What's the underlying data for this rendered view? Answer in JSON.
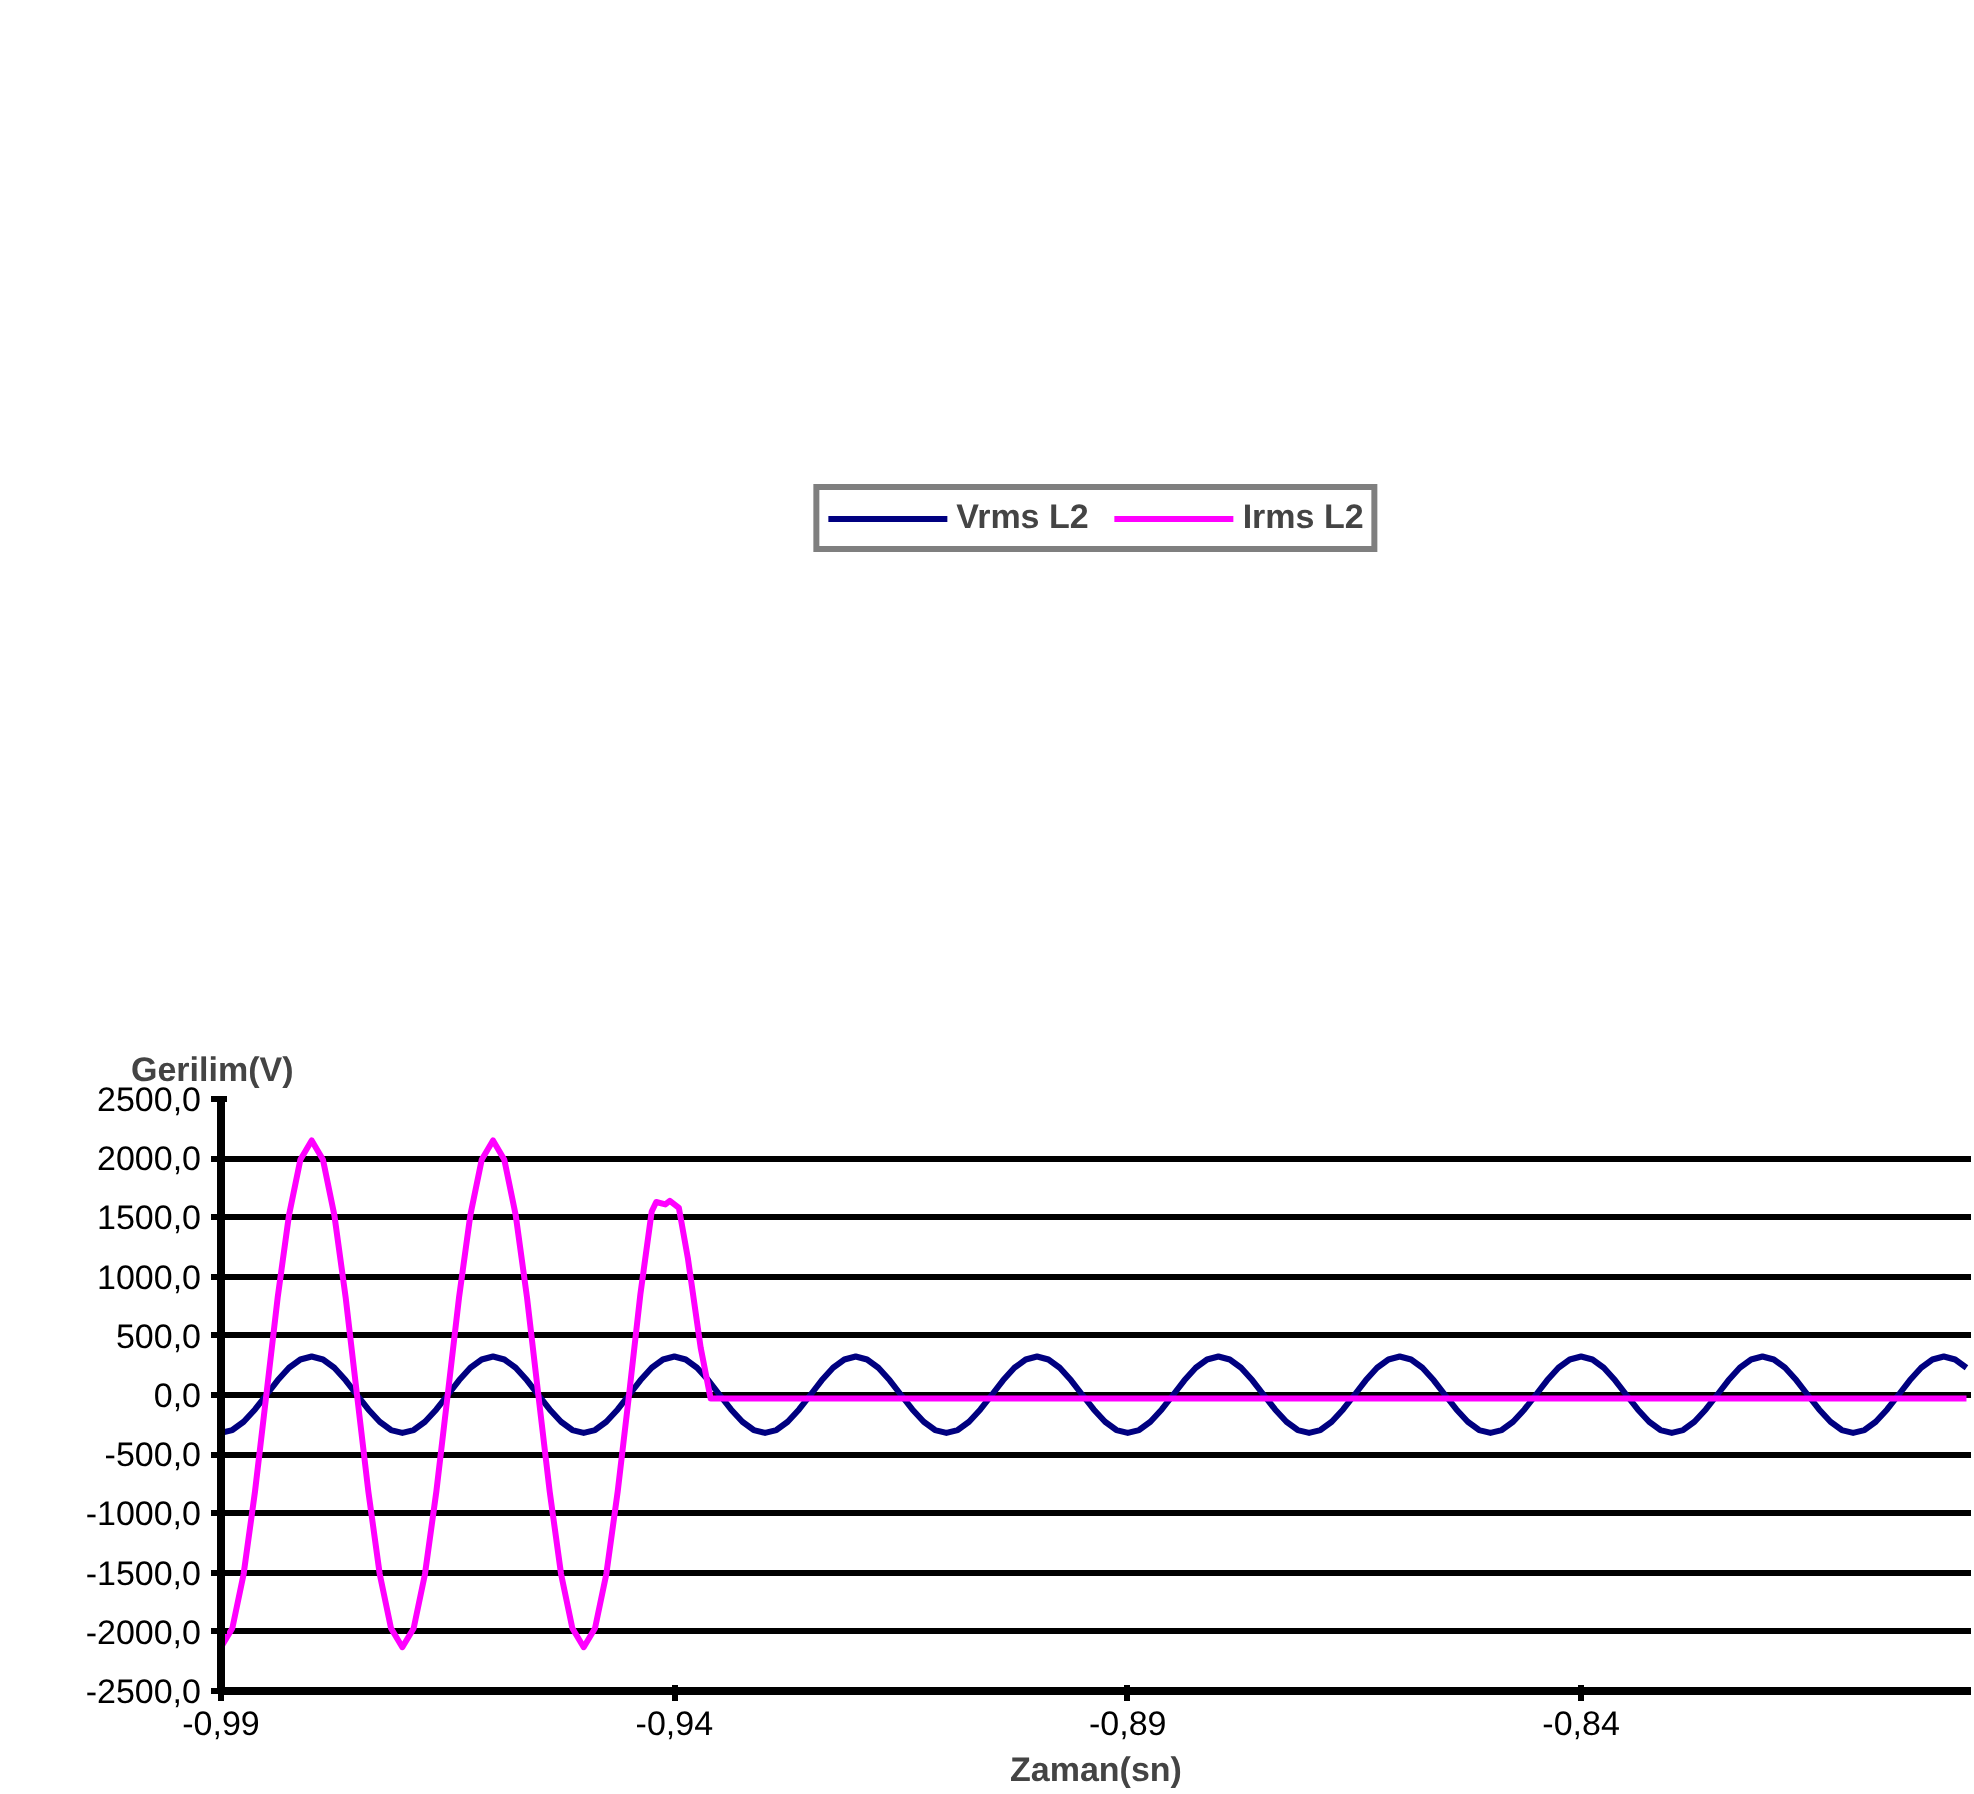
{
  "chart_data": {
    "type": "line",
    "xlabel": "Zaman(sn)",
    "ylabel": "Gerilim(V)",
    "xlim": [
      -0.99,
      -0.797
    ],
    "ylim": [
      -2500,
      2500
    ],
    "xticks": [
      {
        "value": -0.99,
        "label": "-0,99"
      },
      {
        "value": -0.94,
        "label": "-0,94"
      },
      {
        "value": -0.89,
        "label": "-0,89"
      },
      {
        "value": -0.84,
        "label": "-0,84"
      }
    ],
    "yticks": [
      {
        "value": -2500,
        "label": "-2500,0"
      },
      {
        "value": -2000,
        "label": "-2000,0"
      },
      {
        "value": -1500,
        "label": "-1500,0"
      },
      {
        "value": -1000,
        "label": "-1000,0"
      },
      {
        "value": -500,
        "label": "-500,0"
      },
      {
        "value": 0,
        "label": "0,0"
      },
      {
        "value": 500,
        "label": "500,0"
      },
      {
        "value": 1000,
        "label": "1000,0"
      },
      {
        "value": 1500,
        "label": "1500,0"
      },
      {
        "value": 2000,
        "label": "2000,0"
      },
      {
        "value": 2500,
        "label": "2500,0"
      }
    ],
    "grid": "y",
    "legend": "top",
    "x": [
      -0.99,
      -0.98875,
      -0.9875,
      -0.98625,
      -0.985,
      -0.98375,
      -0.9825,
      -0.98125,
      -0.98,
      -0.97875,
      -0.9775,
      -0.97625,
      -0.975,
      -0.97375,
      -0.9725,
      -0.97125,
      -0.97,
      -0.96875,
      -0.9675,
      -0.96625,
      -0.965,
      -0.96375,
      -0.9625,
      -0.96125,
      -0.96,
      -0.95875,
      -0.9575,
      -0.95625,
      -0.955,
      -0.95375,
      -0.9525,
      -0.95125,
      -0.95,
      -0.94875,
      -0.9475,
      -0.94625,
      -0.945,
      -0.94375,
      -0.9425,
      -0.94125,
      -0.94,
      -0.93875,
      -0.9375,
      -0.93625,
      -0.935,
      -0.93375,
      -0.9325,
      -0.93125,
      -0.93,
      -0.92875,
      -0.9275,
      -0.92625,
      -0.925,
      -0.92375,
      -0.9225,
      -0.92125,
      -0.92,
      -0.91875,
      -0.9175,
      -0.91625,
      -0.915,
      -0.91375,
      -0.9125,
      -0.91125,
      -0.91,
      -0.90875,
      -0.9075,
      -0.90625,
      -0.905,
      -0.90375,
      -0.9025,
      -0.90125,
      -0.9,
      -0.89875,
      -0.8975,
      -0.89625,
      -0.895,
      -0.89375,
      -0.8925,
      -0.89125,
      -0.89,
      -0.88875,
      -0.8875,
      -0.88625,
      -0.885,
      -0.88375,
      -0.8825,
      -0.88125,
      -0.88,
      -0.87875,
      -0.8775,
      -0.87625,
      -0.875,
      -0.87375,
      -0.8725,
      -0.87125,
      -0.87,
      -0.86875,
      -0.8675,
      -0.86625,
      -0.865,
      -0.86375,
      -0.8625,
      -0.86125,
      -0.86,
      -0.85875,
      -0.8575,
      -0.85625,
      -0.855,
      -0.85375,
      -0.8525,
      -0.85125,
      -0.85,
      -0.84875,
      -0.8475,
      -0.84625,
      -0.845,
      -0.84375,
      -0.8425,
      -0.84125,
      -0.84,
      -0.83875,
      -0.8375,
      -0.83625,
      -0.835,
      -0.83375,
      -0.8325,
      -0.83125,
      -0.83,
      -0.82875,
      -0.8275,
      -0.82625,
      -0.825,
      -0.82375,
      -0.8225,
      -0.82125,
      -0.82,
      -0.81875,
      -0.8175,
      -0.81625,
      -0.815,
      -0.81375,
      -0.8125,
      -0.81125,
      -0.81,
      -0.80875,
      -0.8075,
      -0.80625,
      -0.805,
      -0.80375,
      -0.8025,
      -0.80125,
      -0.8,
      -0.79875,
      -0.7975
    ],
    "series": [
      {
        "name": "Vrms L2",
        "color": "#000080",
        "values": [
          -320,
          -296,
          -226,
          -122,
          0,
          124,
          230,
          300,
          325,
          300,
          230,
          124,
          0,
          -122,
          -226,
          -296,
          -320,
          -296,
          -226,
          -122,
          0,
          124,
          230,
          300,
          325,
          300,
          230,
          124,
          0,
          -122,
          -226,
          -296,
          -320,
          -296,
          -226,
          -122,
          0,
          124,
          230,
          300,
          325,
          300,
          230,
          124,
          0,
          -122,
          -226,
          -296,
          -320,
          -296,
          -226,
          -122,
          0,
          124,
          230,
          300,
          325,
          300,
          230,
          124,
          0,
          -122,
          -226,
          -296,
          -320,
          -296,
          -226,
          -122,
          0,
          124,
          230,
          300,
          325,
          300,
          230,
          124,
          0,
          -122,
          -226,
          -296,
          -320,
          -296,
          -226,
          -122,
          0,
          124,
          230,
          300,
          325,
          300,
          230,
          124,
          0,
          -122,
          -226,
          -296,
          -320,
          -296,
          -226,
          -122,
          0,
          124,
          230,
          300,
          325,
          300,
          230,
          124,
          0,
          -122,
          -226,
          -296,
          -320,
          -296,
          -226,
          -122,
          0,
          124,
          230,
          300,
          325,
          300,
          230,
          124,
          0,
          -122,
          -226,
          -296,
          -320,
          -296,
          -226,
          -122,
          0,
          124,
          230,
          300,
          325,
          300,
          230,
          124,
          0,
          -122,
          -226,
          -296,
          -320,
          -296,
          -226,
          -122,
          0,
          124,
          230,
          300,
          325,
          300,
          230
        ]
      },
      {
        "name": "Irms L2",
        "color": "#ff00ff",
        "x": [
          -0.99,
          -0.98875,
          -0.9875,
          -0.98625,
          -0.985,
          -0.98375,
          -0.9825,
          -0.98125,
          -0.98,
          -0.97875,
          -0.9775,
          -0.97625,
          -0.975,
          -0.97375,
          -0.9725,
          -0.97125,
          -0.97,
          -0.96875,
          -0.9675,
          -0.96625,
          -0.965,
          -0.96375,
          -0.9625,
          -0.96125,
          -0.96,
          -0.95875,
          -0.9575,
          -0.95625,
          -0.955,
          -0.95375,
          -0.9525,
          -0.95125,
          -0.95,
          -0.94875,
          -0.9475,
          -0.94625,
          -0.945,
          -0.94375,
          -0.9425,
          -0.942,
          -0.941,
          -0.9405,
          -0.9395,
          -0.9385,
          -0.9371,
          -0.936,
          -0.92,
          -0.9,
          -0.85,
          -0.7975
        ],
        "values": [
          -2130,
          -1970,
          -1510,
          -815,
          0,
          823,
          1520,
          1986,
          2150,
          1986,
          1520,
          823,
          0,
          -815,
          -1510,
          -1970,
          -2130,
          -1970,
          -1510,
          -815,
          0,
          823,
          1520,
          1986,
          2150,
          1986,
          1520,
          823,
          0,
          -815,
          -1510,
          -1970,
          -2130,
          -1970,
          -1510,
          -815,
          0,
          850,
          1550,
          1630,
          1610,
          1640,
          1580,
          1150,
          400,
          -30,
          -30,
          -30,
          -30,
          -30
        ]
      }
    ]
  }
}
